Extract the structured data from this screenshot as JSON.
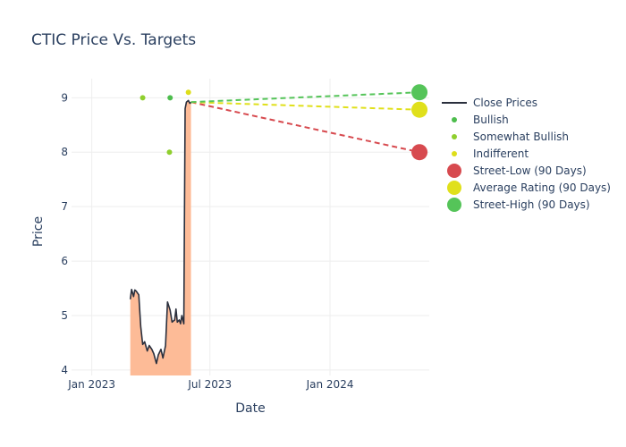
{
  "chart_data": {
    "type": "line",
    "title": "CTIC Price Vs. Targets",
    "xlabel": "Date",
    "ylabel": "Price",
    "xlim": [
      "2022-12-01",
      "2024-06-01"
    ],
    "ylim": [
      3.9,
      9.35
    ],
    "x_ticks": [
      {
        "label": "Jan 2023",
        "date": "2023-01-01"
      },
      {
        "label": "Jul 2023",
        "date": "2023-07-01"
      },
      {
        "label": "Jan 2024",
        "date": "2024-01-01"
      }
    ],
    "y_ticks": [
      4,
      5,
      6,
      7,
      8,
      9
    ],
    "grid": true,
    "legend_position": "right",
    "colors": {
      "close": "#2a2f3d",
      "fill": "#fdbb97",
      "bullish": "#4dbd4d",
      "somewhat_bullish": "#8fcf2e",
      "indifferent": "#dede1a",
      "street_low": "#d74a4f",
      "average": "#e0e01b",
      "street_high": "#55c459"
    },
    "close_prices": {
      "x": [
        "2023-03-01",
        "2023-03-03",
        "2023-03-06",
        "2023-03-08",
        "2023-03-10",
        "2023-03-14",
        "2023-03-17",
        "2023-03-20",
        "2023-03-23",
        "2023-03-27",
        "2023-03-30",
        "2023-04-03",
        "2023-04-06",
        "2023-04-10",
        "2023-04-13",
        "2023-04-17",
        "2023-04-20",
        "2023-04-24",
        "2023-04-27",
        "2023-05-01",
        "2023-05-04",
        "2023-05-08",
        "2023-05-10",
        "2023-05-12",
        "2023-05-15",
        "2023-05-17",
        "2023-05-19",
        "2023-05-22",
        "2023-05-24",
        "2023-05-26",
        "2023-05-29",
        "2023-05-31",
        "2023-06-01",
        "2023-06-02"
      ],
      "y": [
        5.3,
        5.48,
        5.35,
        5.47,
        5.45,
        5.38,
        4.8,
        4.47,
        4.52,
        4.35,
        4.45,
        4.38,
        4.3,
        4.12,
        4.28,
        4.38,
        4.22,
        4.45,
        5.25,
        5.1,
        4.88,
        4.92,
        5.12,
        4.88,
        4.92,
        4.85,
        5.0,
        4.85,
        8.8,
        8.92,
        8.95,
        8.9,
        8.9,
        8.92
      ]
    },
    "ratings": [
      {
        "name": "Bullish",
        "date": "2023-05-01",
        "value": 9.0
      },
      {
        "name": "Somewhat Bullish",
        "date": "2023-03-20",
        "value": 9.0
      },
      {
        "name": "Somewhat Bullish",
        "date": "2023-04-30",
        "value": 8.0
      },
      {
        "name": "Indifferent",
        "date": "2023-05-29",
        "value": 9.1
      }
    ],
    "targets": {
      "start_date": "2023-06-02",
      "start_value": 8.92,
      "end_date": "2024-05-17",
      "street_low": 8.0,
      "average": 8.78,
      "street_high": 9.1
    },
    "legend": [
      {
        "label": "Close Prices",
        "kind": "line",
        "color_key": "close"
      },
      {
        "label": "Bullish",
        "kind": "dot",
        "color_key": "bullish"
      },
      {
        "label": "Somewhat Bullish",
        "kind": "dot",
        "color_key": "somewhat_bullish"
      },
      {
        "label": "Indifferent",
        "kind": "dot",
        "color_key": "indifferent"
      },
      {
        "label": "Street-Low (90 Days)",
        "kind": "big",
        "color_key": "street_low"
      },
      {
        "label": "Average Rating (90 Days)",
        "kind": "big",
        "color_key": "average"
      },
      {
        "label": "Street-High (90 Days)",
        "kind": "big",
        "color_key": "street_high"
      }
    ]
  }
}
